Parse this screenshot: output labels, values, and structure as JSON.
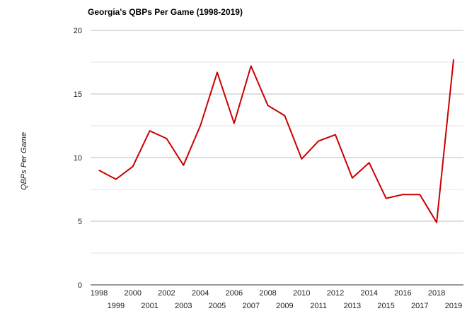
{
  "chart_data": {
    "type": "line",
    "title": "Georgia's QBPs Per Game (1998-2019)",
    "xlabel": "",
    "ylabel": "QBPs Per Game",
    "ylim": [
      0,
      20
    ],
    "y_ticks": [
      "0",
      "5",
      "10",
      "15",
      "20"
    ],
    "grid": true,
    "line_color": "#cc0000",
    "categories": [
      "1998",
      "1999",
      "2000",
      "2001",
      "2002",
      "2003",
      "2004",
      "2005",
      "2006",
      "2007",
      "2008",
      "2009",
      "2010",
      "2011",
      "2012",
      "2013",
      "2014",
      "2015",
      "2016",
      "2017",
      "2018",
      "2019"
    ],
    "series": [
      {
        "values": [
          9.0,
          8.3,
          9.3,
          12.1,
          11.5,
          9.4,
          12.5,
          16.7,
          12.7,
          17.2,
          14.1,
          13.3,
          9.9,
          11.3,
          11.8,
          8.4,
          9.6,
          6.8,
          7.1,
          7.1,
          4.9,
          17.7
        ]
      }
    ]
  }
}
